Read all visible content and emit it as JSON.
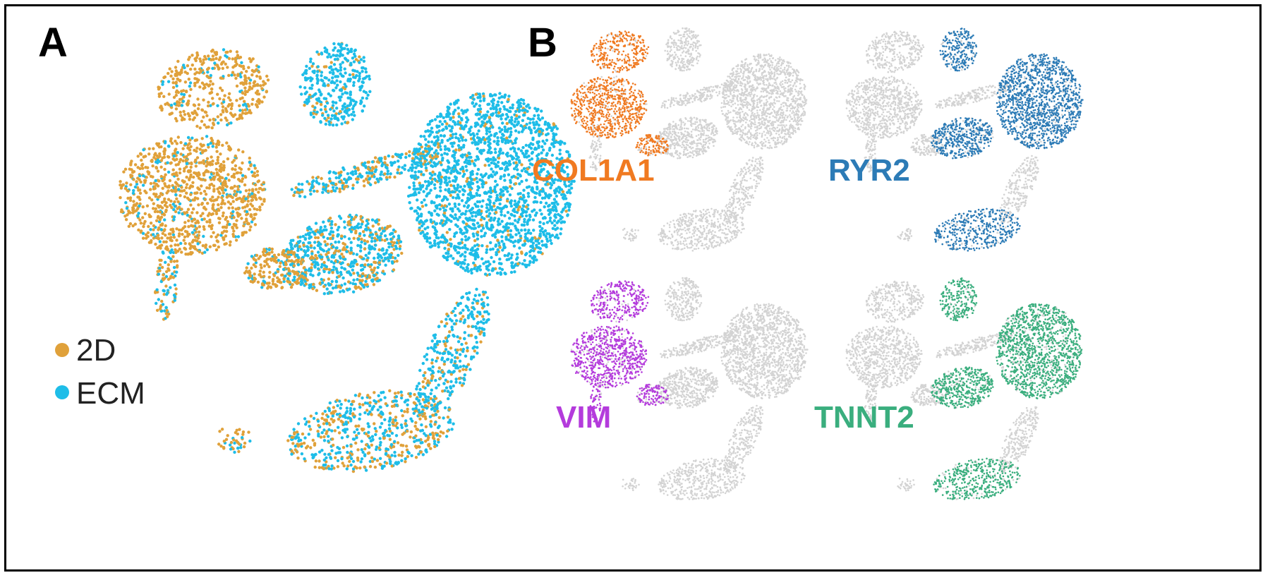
{
  "panels": {
    "a_label": "A",
    "b_label": "B"
  },
  "chart_data": [
    {
      "type": "scatter",
      "panel": "A",
      "description": "UMAP of single cells colored by culture condition",
      "series": [
        {
          "name": "2D",
          "color": "#E0A13A"
        },
        {
          "name": "ECM",
          "color": "#1EBDE8"
        }
      ],
      "legend": {
        "placement": "bottom-left",
        "entries": [
          "2D",
          "ECM"
        ]
      },
      "grid": false,
      "axes_visible": false,
      "clusters": [
        {
          "name": "top-left lobe",
          "dominant": "2D",
          "fraction_2d": 0.88
        },
        {
          "name": "left large lobe",
          "dominant": "2D",
          "fraction_2d": 0.85
        },
        {
          "name": "left tail",
          "dominant": "mixed",
          "fraction_2d": 0.55
        },
        {
          "name": "top-middle lobe",
          "dominant": "ECM",
          "fraction_2d": 0.1
        },
        {
          "name": "right large lobe",
          "dominant": "ECM",
          "fraction_2d": 0.08
        },
        {
          "name": "center body",
          "dominant": "ECM",
          "fraction_2d": 0.3
        },
        {
          "name": "bottom branches",
          "dominant": "mixed",
          "fraction_2d": 0.45
        }
      ]
    },
    {
      "type": "scatter",
      "panel": "B",
      "description": "Feature plots of marker gene expression on the same UMAP",
      "background_color": "#D3D3D3",
      "genes": [
        {
          "name": "COL1A1",
          "color": "#F07A21",
          "expressed_in": [
            "top-left lobe",
            "left large lobe",
            "center-left lobe"
          ]
        },
        {
          "name": "RYR2",
          "color": "#2C7BB6",
          "expressed_in": [
            "top-middle lobe",
            "right large lobe",
            "center body",
            "bottom branches"
          ]
        },
        {
          "name": "VIM",
          "color": "#B43BDC",
          "expressed_in": [
            "top-left lobe",
            "left large lobe",
            "left tail",
            "center-left lobe"
          ]
        },
        {
          "name": "TNNT2",
          "color": "#3AAE7E",
          "expressed_in": [
            "right large lobe",
            "center body",
            "top-middle lobe",
            "bottom branches"
          ]
        }
      ]
    }
  ],
  "legend": {
    "items": [
      {
        "label": "2D",
        "color": "#E0A13A"
      },
      {
        "label": "ECM",
        "color": "#1EBDE8"
      }
    ]
  },
  "gene_labels": {
    "col1a1": "COL1A1",
    "ryr2": "RYR2",
    "vim": "VIM",
    "tnnt2": "TNNT2"
  }
}
